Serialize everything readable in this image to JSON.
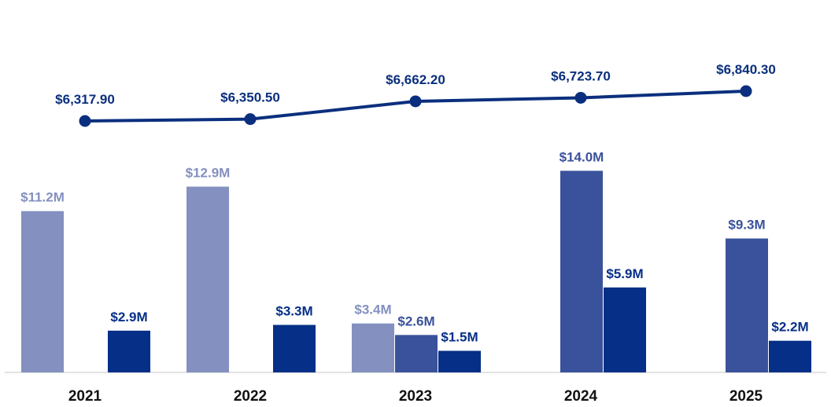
{
  "chart_data": {
    "type": "bar",
    "categories": [
      "2021",
      "2022",
      "2023",
      "2024",
      "2025"
    ],
    "series": [
      {
        "values": [
          11.2,
          12.9,
          3.4,
          null,
          null
        ],
        "labels": [
          "$11.2M",
          "$12.9M",
          "$3.4M",
          "",
          ""
        ],
        "color": "#8490c0"
      },
      {
        "values": [
          null,
          null,
          2.6,
          14.0,
          9.3
        ],
        "labels": [
          "",
          "",
          "$2.6M",
          "$14.0M",
          "$9.3M"
        ],
        "color": "#3a529b"
      },
      {
        "values": [
          2.9,
          3.3,
          1.5,
          5.9,
          2.2
        ],
        "labels": [
          "$2.9M",
          "$3.3M",
          "$1.5M",
          "$5.9M",
          "$2.2M"
        ],
        "color": "#062f87"
      }
    ],
    "line_series": {
      "type": "line",
      "values": [
        6317.9,
        6350.5,
        6662.2,
        6723.7,
        6840.3
      ],
      "labels": [
        "$6,317.90",
        "$6,350.50",
        "$6,662.20",
        "$6,723.70",
        "$6,840.30"
      ],
      "color": "#0b2f7e"
    },
    "title": "",
    "xlabel": "",
    "ylabel": "",
    "grid": false,
    "legend": "none"
  }
}
